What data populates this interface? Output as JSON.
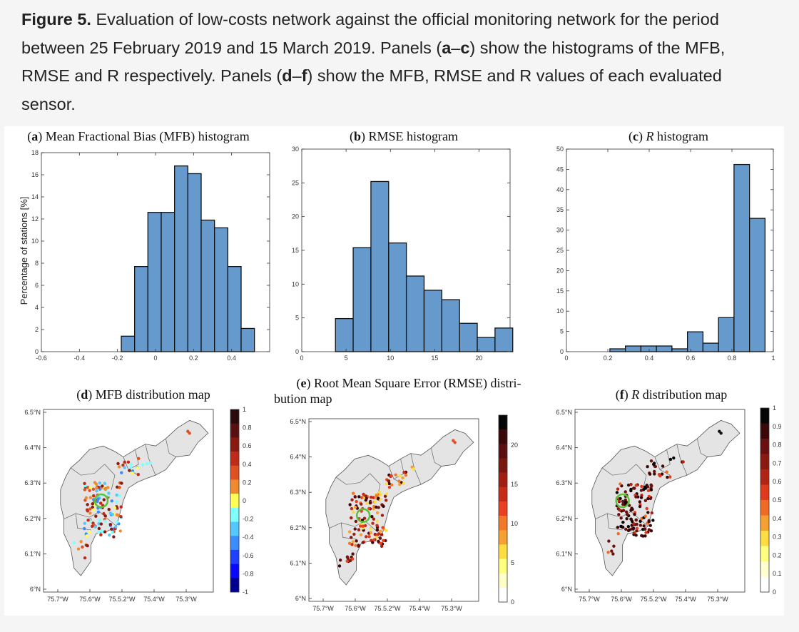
{
  "caption": {
    "label": "Figure 5.",
    "seg1": " Evaluation of low-costs network against the official monitoring network for the period between 25 February 2019 and 15 March 2019. Panels (",
    "b1": "a",
    "dash1": "–",
    "b2": "c",
    "seg2": ") show the histograms of the MFB, RMSE and R respectively. Panels (",
    "b3": "d",
    "dash2": "–",
    "b4": "f",
    "seg3": ") show the MFB, RMSE and R values of each evaluated sensor."
  },
  "chart_data": [
    {
      "type": "bar",
      "panel": "(a)",
      "panel_letter": "a",
      "title_rest": " Mean Fractional Bias (MFB) histogram",
      "ylabel": "Percentage of stations [%]",
      "xlim": [
        -0.6,
        0.6
      ],
      "ylim": [
        0,
        18
      ],
      "xticks": [
        "-0.6",
        "-0.4",
        "-0.2",
        "0",
        "0.2",
        "0.4"
      ],
      "xtick_values": [
        -0.6,
        -0.4,
        -0.2,
        0,
        0.2,
        0.4
      ],
      "yticks": [
        0,
        2,
        4,
        6,
        8,
        10,
        12,
        14,
        16,
        18
      ],
      "bin_edges": [
        -0.18,
        -0.11,
        -0.04,
        0.03,
        0.1,
        0.17,
        0.24,
        0.31,
        0.38,
        0.45,
        0.52
      ],
      "values": [
        1.4,
        7.7,
        12.6,
        12.6,
        16.8,
        16.1,
        11.9,
        11.2,
        7.7,
        2.1
      ],
      "bar_color": "#6699cc"
    },
    {
      "type": "bar",
      "panel": "(b)",
      "panel_letter": "b",
      "title_rest": " RMSE histogram",
      "xlim": [
        0,
        23.5
      ],
      "ylim": [
        0,
        30
      ],
      "xticks": [
        "0",
        "5",
        "10",
        "15",
        "20"
      ],
      "xtick_values": [
        0,
        5,
        10,
        15,
        20
      ],
      "yticks": [
        0,
        5,
        10,
        15,
        20,
        25,
        30
      ],
      "bin_edges": [
        3.8,
        5.8,
        7.8,
        9.8,
        11.8,
        13.8,
        15.8,
        17.8,
        19.8,
        21.8,
        23.8
      ],
      "values": [
        4.9,
        15.4,
        25.2,
        16.1,
        11.2,
        9.1,
        7.7,
        4.2,
        2.1,
        3.5
      ],
      "bar_color": "#6699cc"
    },
    {
      "type": "bar",
      "panel": "(c)",
      "panel_letter": "c",
      "title_italic": "R",
      "title_rest": " histogram",
      "xlim": [
        0,
        1
      ],
      "ylim": [
        0,
        50
      ],
      "xticks": [
        "0",
        "0.2",
        "0.4",
        "0.6",
        "0.8",
        "1"
      ],
      "xtick_values": [
        0,
        0.2,
        0.4,
        0.6,
        0.8,
        1
      ],
      "yticks": [
        0,
        5,
        10,
        15,
        20,
        25,
        30,
        35,
        40,
        45,
        50
      ],
      "bin_edges": [
        0.21,
        0.285,
        0.36,
        0.435,
        0.51,
        0.585,
        0.66,
        0.735,
        0.81,
        0.885,
        0.96
      ],
      "values": [
        0.7,
        1.4,
        1.4,
        1.4,
        0.7,
        4.9,
        2.1,
        8.4,
        46.2,
        32.9
      ],
      "bar_color": "#6699cc"
    }
  ],
  "maps": [
    {
      "panel": "(d)",
      "panel_letter": "d",
      "title_rest": " MFB distribution map",
      "lat_labels": [
        "6.5°N",
        "6.4°N",
        "6.3°N",
        "6.2°N",
        "6.1°N",
        "6°N"
      ],
      "lon_labels": [
        "75.7°W",
        "75.6°W",
        "75.5.2°W",
        "75.4°W",
        "75.3°W"
      ],
      "colorbar_labels": [
        "1",
        "0.8",
        "0.6",
        "0.4",
        "0.2",
        "0",
        "-0.2",
        "-0.4",
        "-0.6",
        "-0.8",
        "-1"
      ],
      "colorbar_colors": [
        "#2a0a0a",
        "#5a1010",
        "#8a1a10",
        "#c02a18",
        "#e05020",
        "#f08a30",
        "#ffff55",
        "#7fffff",
        "#55c8ff",
        "#3a8cff",
        "#2040ff",
        "#0808ff",
        "#000090"
      ]
    },
    {
      "panel": "(e)",
      "panel_letter": "e",
      "title_rest": " Root Mean Square Error (RMSE) distri-",
      "title_line2": "bution map",
      "lat_labels": [
        "6.5°N",
        "6.4°N",
        "6.3°N",
        "6.2°N",
        "6.1°N",
        "6°N"
      ],
      "lon_labels": [
        "75.7°W",
        "75.6°W",
        "75.5.2°W",
        "75.4°W",
        "75.3°W"
      ],
      "colorbar_labels": [
        "20",
        "15",
        "10",
        "5",
        "0"
      ],
      "colorbar_colors": [
        "#050505",
        "#3a0808",
        "#5a1010",
        "#7a1810",
        "#a01f10",
        "#c82a18",
        "#e84020",
        "#f07828",
        "#f5a030",
        "#ffdd40",
        "#ffff80",
        "#ffffc8",
        "#ffffff"
      ]
    },
    {
      "panel": "(f)",
      "panel_letter": "f",
      "title_italic": "R",
      "title_rest": " distribution map",
      "lat_labels": [
        "6.5°N",
        "6.4°N",
        "6.3°N",
        "6.2°N",
        "6.1°N",
        "6°N"
      ],
      "lon_labels": [
        "75.7°W",
        "75.6°W",
        "75.5.2°W",
        "75.4°W",
        "75.3°W"
      ],
      "colorbar_labels": [
        "1",
        "0.9",
        "0.8",
        "0.7",
        "0.6",
        "0.5",
        "0.4",
        "0.3",
        "0.2",
        "0.1",
        "0"
      ],
      "colorbar_colors": [
        "#050505",
        "#3a0808",
        "#6a1010",
        "#8a1a10",
        "#b02414",
        "#e03a1c",
        "#f06a24",
        "#f5a030",
        "#ffdd40",
        "#ffff80",
        "#ffffd0",
        "#ffffff"
      ]
    }
  ]
}
